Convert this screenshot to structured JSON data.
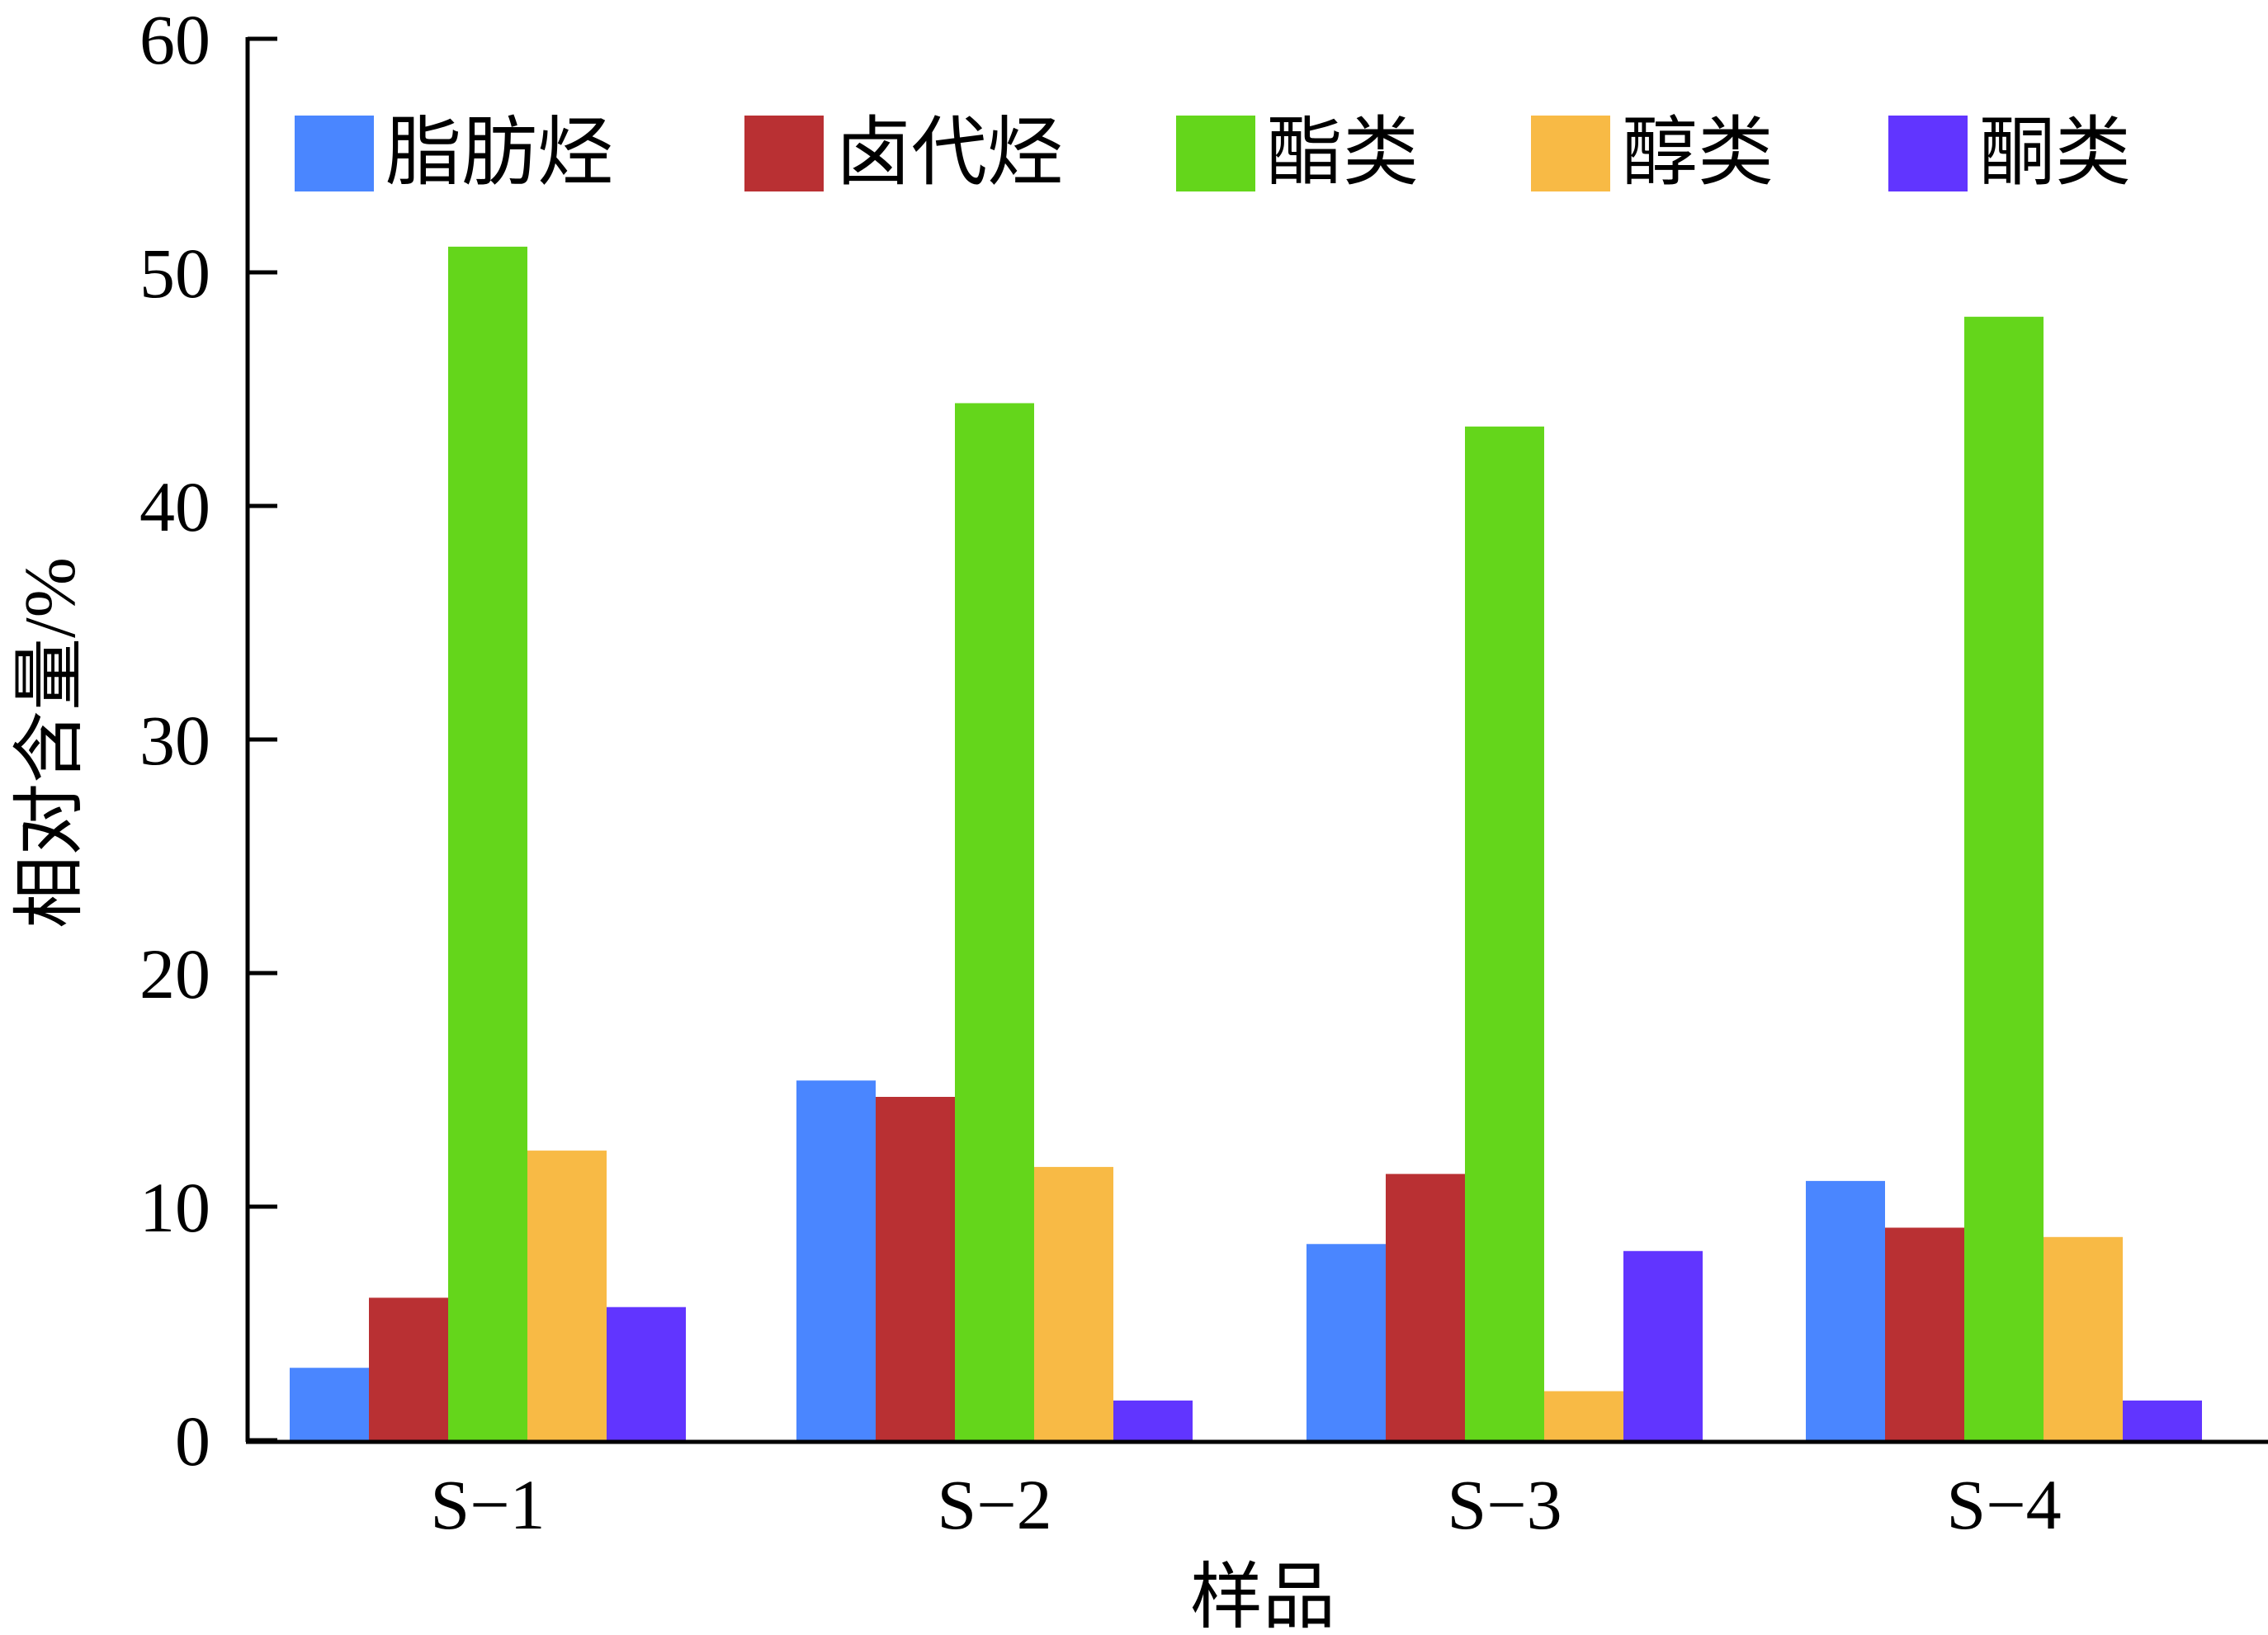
{
  "chart_data": {
    "type": "bar",
    "categories": [
      "S−1",
      "S−2",
      "S−3",
      "S−4"
    ],
    "series": [
      {
        "name": "脂肪烃",
        "color": "#4A86FF",
        "values": [
          3.1,
          15.4,
          8.4,
          11.1
        ]
      },
      {
        "name": "卤代烃",
        "color": "#B93033",
        "values": [
          6.1,
          14.7,
          11.4,
          9.1
        ]
      },
      {
        "name": "酯类",
        "color": "#64D61B",
        "values": [
          51.1,
          44.4,
          43.4,
          48.1
        ]
      },
      {
        "name": "醇类",
        "color": "#F8BA45",
        "values": [
          12.4,
          11.7,
          2.1,
          8.7
        ]
      },
      {
        "name": "酮类",
        "color": "#6135FF",
        "values": [
          5.7,
          1.7,
          8.1,
          1.7
        ]
      }
    ],
    "xlabel": "样品",
    "ylabel": "相对含量/%",
    "ylim": [
      0,
      60
    ],
    "yticks": [
      "0",
      "10",
      "20",
      "30",
      "40",
      "50",
      "60"
    ],
    "grid": false,
    "legend_position": "top"
  }
}
